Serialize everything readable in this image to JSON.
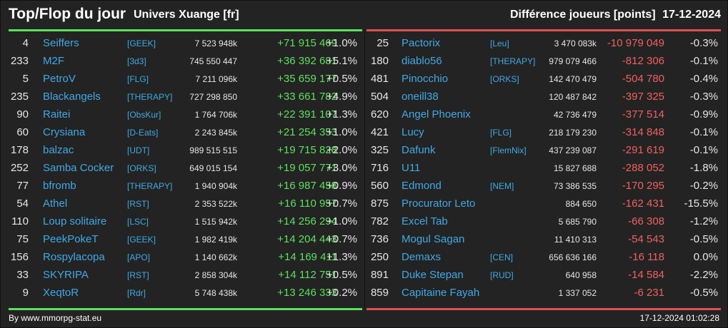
{
  "header": {
    "title": "Top/Flop du jour",
    "universe": "Univers Xuange [fr]",
    "metric": "Différence joueurs [points]",
    "date": "17-12-2024"
  },
  "colors": {
    "background": "#232323",
    "top_accent": "#5de05d",
    "flop_accent": "#e05050",
    "player_link": "#3fa9e6",
    "text": "#e6e6e6"
  },
  "top": [
    {
      "rank": "4",
      "name": "Seiffers",
      "alliance": "[GEEK]",
      "points": "7 523 948k",
      "diff": "+71 915 469",
      "pct": "+1.0%"
    },
    {
      "rank": "233",
      "name": "M2F",
      "alliance": "[3d3]",
      "points": "745 550 447",
      "diff": "+36 392 681",
      "pct": "+5.1%"
    },
    {
      "rank": "5",
      "name": "PetroV",
      "alliance": "[FLG]",
      "points": "7 211 096k",
      "diff": "+35 659 177",
      "pct": "+0.5%"
    },
    {
      "rank": "235",
      "name": "Blackangels",
      "alliance": "[THERAPY]",
      "points": "727 298 850",
      "diff": "+33 661 782",
      "pct": "+4.9%"
    },
    {
      "rank": "90",
      "name": "Raitei",
      "alliance": "[ObsKur]",
      "points": "1 764 706k",
      "diff": "+22 391 107",
      "pct": "+1.3%"
    },
    {
      "rank": "60",
      "name": "Crysiana",
      "alliance": "[D-Eats]",
      "points": "2 243 845k",
      "diff": "+21 254 353",
      "pct": "+1.0%"
    },
    {
      "rank": "178",
      "name": "balzac",
      "alliance": "[UDT]",
      "points": "989 515 515",
      "diff": "+19 715 828",
      "pct": "+2.0%"
    },
    {
      "rank": "252",
      "name": "Samba Cocker",
      "alliance": "[ORKS]",
      "points": "649 015 154",
      "diff": "+19 057 771",
      "pct": "+3.0%"
    },
    {
      "rank": "77",
      "name": "bfromb",
      "alliance": "[THERAPY]",
      "points": "1 940 904k",
      "diff": "+16 987 458",
      "pct": "+0.9%"
    },
    {
      "rank": "54",
      "name": "Athel",
      "alliance": "[RST]",
      "points": "2 353 522k",
      "diff": "+16 110 957",
      "pct": "+0.7%"
    },
    {
      "rank": "110",
      "name": "Loup solitaire",
      "alliance": "[LSC]",
      "points": "1 515 942k",
      "diff": "+14 256 294",
      "pct": "+1.0%"
    },
    {
      "rank": "75",
      "name": "PeekPokeT",
      "alliance": "[GEEK]",
      "points": "1 982 419k",
      "diff": "+14 204 443",
      "pct": "+0.7%"
    },
    {
      "rank": "156",
      "name": "Rospylacopa",
      "alliance": "[APO]",
      "points": "1 140 662k",
      "diff": "+14 169 411",
      "pct": "+1.3%"
    },
    {
      "rank": "33",
      "name": "SKYRIPA",
      "alliance": "[RST]",
      "points": "2 858 304k",
      "diff": "+14 112 751",
      "pct": "+0.5%"
    },
    {
      "rank": "9",
      "name": "XeqtoR",
      "alliance": "[Rdr]",
      "points": "5 748 438k",
      "diff": "+13 246 333",
      "pct": "+0.2%"
    }
  ],
  "flop": [
    {
      "rank": "25",
      "name": "Pactorix",
      "alliance": "[Leu]",
      "points": "3 470 083k",
      "diff": "-10 979 049",
      "pct": "-0.3%"
    },
    {
      "rank": "180",
      "name": "diablo56",
      "alliance": "[THERAPY]",
      "points": "979 079 466",
      "diff": "-812 306",
      "pct": "-0.1%"
    },
    {
      "rank": "481",
      "name": "Pinocchio",
      "alliance": "[ORKS]",
      "points": "142 470 479",
      "diff": "-504 780",
      "pct": "-0.4%"
    },
    {
      "rank": "504",
      "name": "oneill38",
      "alliance": "",
      "points": "120 487 842",
      "diff": "-397 325",
      "pct": "-0.3%"
    },
    {
      "rank": "620",
      "name": "Angel Phoenix",
      "alliance": "",
      "points": "42 736 479",
      "diff": "-377 514",
      "pct": "-0.9%"
    },
    {
      "rank": "421",
      "name": "Lucy",
      "alliance": "[FLG]",
      "points": "218 179 230",
      "diff": "-314 848",
      "pct": "-0.1%"
    },
    {
      "rank": "325",
      "name": "Dafunk",
      "alliance": "[FlemNix]",
      "points": "437 239 087",
      "diff": "-291 619",
      "pct": "-0.1%"
    },
    {
      "rank": "716",
      "name": "U11",
      "alliance": "",
      "points": "15 827 688",
      "diff": "-288 052",
      "pct": "-1.8%"
    },
    {
      "rank": "560",
      "name": "Edmond",
      "alliance": "[NEM]",
      "points": "73 386 535",
      "diff": "-170 295",
      "pct": "-0.2%"
    },
    {
      "rank": "875",
      "name": "Procurator Leto",
      "alliance": "",
      "points": "884 650",
      "diff": "-162 431",
      "pct": "-15.5%"
    },
    {
      "rank": "782",
      "name": "Excel Tab",
      "alliance": "",
      "points": "5 685 790",
      "diff": "-66 308",
      "pct": "-1.2%"
    },
    {
      "rank": "736",
      "name": "Mogul Sagan",
      "alliance": "",
      "points": "11 410 313",
      "diff": "-54 543",
      "pct": "-0.5%"
    },
    {
      "rank": "250",
      "name": "Demaxs",
      "alliance": "[CEN]",
      "points": "656 636 166",
      "diff": "-16 118",
      "pct": "0.0%"
    },
    {
      "rank": "891",
      "name": "Duke Stepan",
      "alliance": "[RUD]",
      "points": "640 958",
      "diff": "-14 584",
      "pct": "-2.2%"
    },
    {
      "rank": "859",
      "name": "Capitaine Fayah",
      "alliance": "",
      "points": "1 337 052",
      "diff": "-6 231",
      "pct": "-0.5%"
    }
  ],
  "footer": {
    "credit": "By www.mmorpg-stat.eu",
    "timestamp": "17-12-2024 01:02:28"
  }
}
